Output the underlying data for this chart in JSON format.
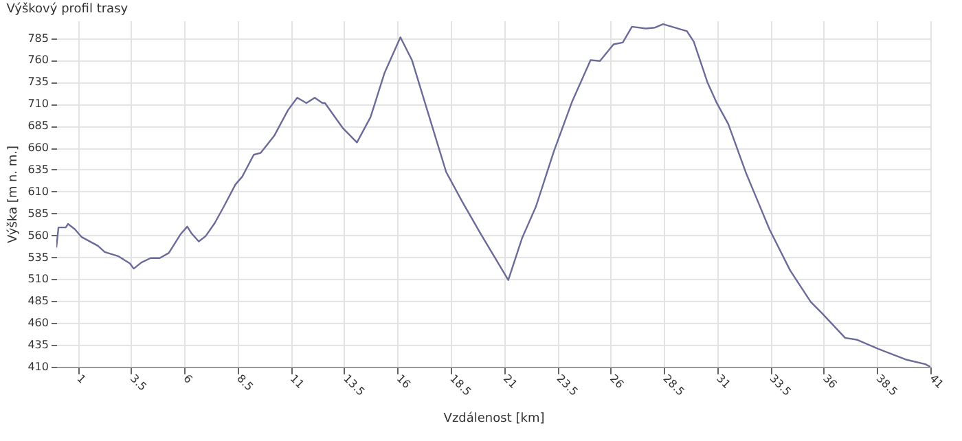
{
  "chart_data": {
    "type": "line",
    "title": "Výškový profil trasy",
    "xlabel": "Vzdálenost [km]",
    "ylabel": "Výška [m n. m.]",
    "x": [
      0,
      0.1,
      0.44,
      0.55,
      0.87,
      1.19,
      1.95,
      2.27,
      2.92,
      3.45,
      3.63,
      3.99,
      4.42,
      4.85,
      5.28,
      5.82,
      6.14,
      6.35,
      6.68,
      7.0,
      7.43,
      7.86,
      8.4,
      8.72,
      9.26,
      9.58,
      10.23,
      10.87,
      11.3,
      11.73,
      12.12,
      12.48,
      12.6,
      13.45,
      14.1,
      14.74,
      15.39,
      16.14,
      16.68,
      17.86,
      18.29,
      19.05,
      19.9,
      21.2,
      21.85,
      22.5,
      23.34,
      24.2,
      25.06,
      25.5,
      26.14,
      26.57,
      27.0,
      27.65,
      28.08,
      28.46,
      29.58,
      29.9,
      30.55,
      30.98,
      31.52,
      32.37,
      32.92,
      33.45,
      34.42,
      35.39,
      35.92,
      37.0,
      37.54,
      38.6,
      39.89,
      40.76,
      41
    ],
    "series": [
      {
        "color": "#6b6b9a",
        "values": [
          546,
          569,
          569,
          573,
          567,
          558,
          548,
          541,
          536,
          528,
          522,
          529,
          534,
          534,
          540,
          561,
          570,
          562,
          553,
          559,
          574,
          593,
          618,
          627,
          652,
          654,
          674,
          703,
          717,
          711,
          717,
          711,
          711,
          682,
          666,
          695,
          745,
          786,
          760,
          666,
          632,
          598,
          562,
          509,
          557,
          593,
          656,
          713,
          760,
          759,
          778,
          780,
          798,
          796,
          797,
          801,
          793,
          781,
          734,
          711,
          687,
          630,
          598,
          567,
          520,
          484,
          471,
          443,
          441,
          430,
          418,
          413,
          410
        ]
      }
    ],
    "xlim": [
      0,
      41
    ],
    "xticks": [
      1,
      3.5,
      6,
      8.5,
      11,
      13.5,
      16,
      18.5,
      21,
      23.5,
      26,
      28.5,
      31,
      33.5,
      36,
      38.5,
      41
    ],
    "ylim": [
      410,
      805
    ],
    "yticks": [
      410,
      435,
      460,
      485,
      510,
      535,
      560,
      585,
      610,
      635,
      660,
      685,
      710,
      735,
      760,
      785
    ],
    "grid": true,
    "marker": "none",
    "line_style": "solid"
  }
}
